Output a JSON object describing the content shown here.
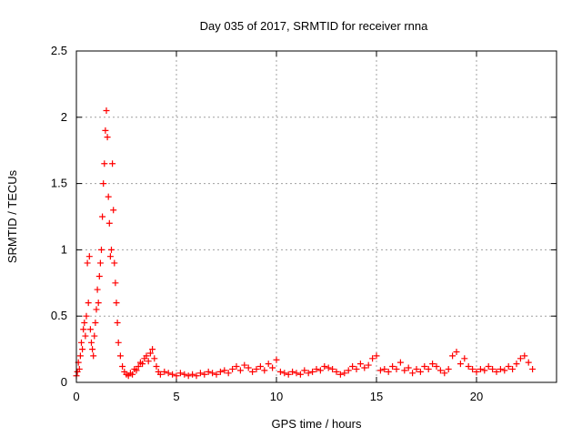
{
  "chart_data": {
    "type": "scatter",
    "title": "Day 035 of 2017, SRMTID for receiver rnna",
    "xlabel": "GPS time / hours",
    "ylabel": "SRMTID / TECUs",
    "xlim": [
      0,
      24
    ],
    "ylim": [
      0,
      2.5
    ],
    "x_ticks": [
      0,
      5,
      10,
      15,
      20
    ],
    "x_tick_labels": [
      "0",
      "5",
      "10",
      "15",
      "20"
    ],
    "y_ticks": [
      0,
      0.5,
      1,
      1.5,
      2,
      2.5
    ],
    "y_tick_labels": [
      "0",
      "0.5",
      "1",
      "1.5",
      "2",
      "2.5"
    ],
    "grid": true,
    "marker": "plus",
    "color": "#ff0000",
    "series": [
      {
        "name": "SRMTID",
        "x": [
          0.0,
          0.05,
          0.1,
          0.15,
          0.2,
          0.25,
          0.3,
          0.35,
          0.4,
          0.45,
          0.5,
          0.55,
          0.6,
          0.65,
          0.7,
          0.75,
          0.8,
          0.85,
          0.9,
          0.95,
          1.0,
          1.05,
          1.1,
          1.15,
          1.2,
          1.25,
          1.3,
          1.35,
          1.4,
          1.45,
          1.5,
          1.55,
          1.6,
          1.65,
          1.7,
          1.75,
          1.8,
          1.85,
          1.9,
          1.95,
          2.0,
          2.05,
          2.1,
          2.2,
          2.3,
          2.4,
          2.5,
          2.6,
          2.7,
          2.8,
          2.9,
          3.0,
          3.1,
          3.2,
          3.3,
          3.4,
          3.5,
          3.6,
          3.7,
          3.8,
          3.9,
          4.0,
          4.1,
          4.2,
          4.4,
          4.6,
          4.8,
          5.0,
          5.2,
          5.4,
          5.6,
          5.8,
          6.0,
          6.2,
          6.4,
          6.6,
          6.8,
          7.0,
          7.2,
          7.4,
          7.6,
          7.8,
          8.0,
          8.2,
          8.4,
          8.6,
          8.8,
          9.0,
          9.2,
          9.4,
          9.6,
          9.8,
          10.0,
          10.2,
          10.4,
          10.6,
          10.8,
          11.0,
          11.2,
          11.4,
          11.6,
          11.8,
          12.0,
          12.2,
          12.4,
          12.6,
          12.8,
          13.0,
          13.2,
          13.4,
          13.6,
          13.8,
          14.0,
          14.2,
          14.4,
          14.6,
          14.8,
          15.0,
          15.2,
          15.4,
          15.6,
          15.8,
          16.0,
          16.2,
          16.4,
          16.6,
          16.8,
          17.0,
          17.2,
          17.4,
          17.6,
          17.8,
          18.0,
          18.2,
          18.4,
          18.6,
          18.8,
          19.0,
          19.2,
          19.4,
          19.6,
          19.8,
          20.0,
          20.2,
          20.4,
          20.6,
          20.8,
          21.0,
          21.2,
          21.4,
          21.6,
          21.8,
          22.0,
          22.2,
          22.4,
          22.6,
          22.8
        ],
        "y": [
          0.05,
          0.08,
          0.15,
          0.1,
          0.2,
          0.3,
          0.25,
          0.4,
          0.45,
          0.35,
          0.5,
          0.9,
          0.6,
          0.95,
          0.4,
          0.3,
          0.25,
          0.2,
          0.35,
          0.45,
          0.55,
          0.7,
          0.6,
          0.8,
          0.9,
          1.0,
          1.25,
          1.5,
          1.65,
          1.9,
          2.05,
          1.85,
          1.4,
          1.2,
          0.95,
          1.0,
          1.65,
          1.3,
          0.9,
          0.75,
          0.6,
          0.45,
          0.3,
          0.2,
          0.12,
          0.08,
          0.06,
          0.05,
          0.07,
          0.06,
          0.1,
          0.09,
          0.12,
          0.15,
          0.14,
          0.18,
          0.2,
          0.16,
          0.22,
          0.25,
          0.18,
          0.12,
          0.08,
          0.06,
          0.08,
          0.07,
          0.06,
          0.05,
          0.07,
          0.06,
          0.05,
          0.06,
          0.05,
          0.07,
          0.06,
          0.08,
          0.07,
          0.06,
          0.08,
          0.09,
          0.07,
          0.1,
          0.12,
          0.09,
          0.13,
          0.11,
          0.08,
          0.1,
          0.12,
          0.09,
          0.14,
          0.11,
          0.17,
          0.08,
          0.07,
          0.06,
          0.08,
          0.07,
          0.06,
          0.09,
          0.07,
          0.08,
          0.1,
          0.09,
          0.12,
          0.11,
          0.1,
          0.08,
          0.06,
          0.07,
          0.09,
          0.12,
          0.1,
          0.14,
          0.11,
          0.13,
          0.18,
          0.2,
          0.09,
          0.1,
          0.08,
          0.12,
          0.1,
          0.15,
          0.09,
          0.11,
          0.07,
          0.1,
          0.08,
          0.12,
          0.1,
          0.14,
          0.12,
          0.09,
          0.07,
          0.1,
          0.2,
          0.23,
          0.14,
          0.18,
          0.12,
          0.1,
          0.08,
          0.1,
          0.09,
          0.12,
          0.1,
          0.08,
          0.1,
          0.09,
          0.12,
          0.1,
          0.14,
          0.18,
          0.2,
          0.15,
          0.1
        ]
      }
    ]
  }
}
